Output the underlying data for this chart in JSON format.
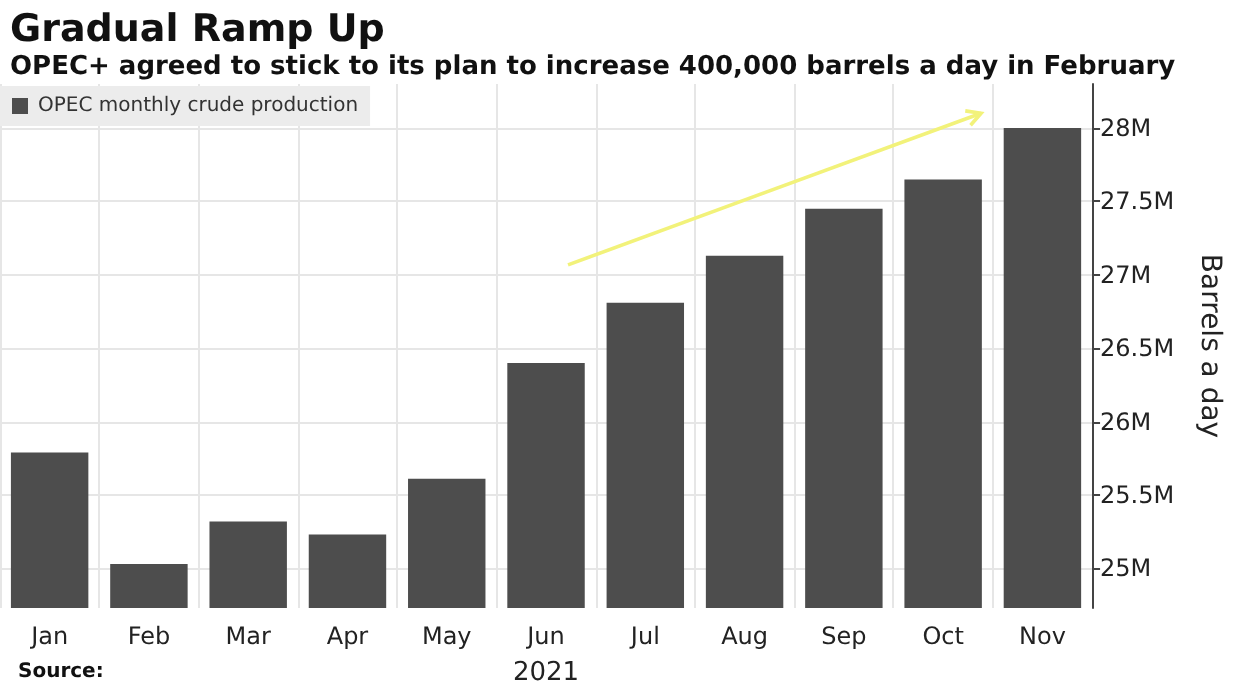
{
  "chart_data": {
    "type": "bar",
    "title": "Gradual Ramp Up",
    "subtitle": "OPEC+ agreed to stick to its plan to increase 400,000 barrels a day in February",
    "categories": [
      "Jan",
      "Feb",
      "Mar",
      "Apr",
      "May",
      "Jun",
      "Jul",
      "Aug",
      "Sep",
      "Oct",
      "Nov"
    ],
    "series": [
      {
        "name": "OPEC monthly crude production",
        "color": "#4d4d4d",
        "values": [
          25.79,
          25.03,
          25.32,
          25.23,
          25.61,
          26.4,
          26.81,
          27.13,
          27.45,
          27.65,
          28.0
        ]
      }
    ],
    "xlabel": "2021",
    "ylabel": "Barrels a day",
    "ylim": [
      24.73,
      28.3
    ],
    "yticks": [
      {
        "value": 25,
        "label": "25M"
      },
      {
        "value": 25.5,
        "label": "25.5M"
      },
      {
        "value": 26,
        "label": "26M"
      },
      {
        "value": 26.5,
        "label": "26.5M"
      },
      {
        "value": 27,
        "label": "27M"
      },
      {
        "value": 27.5,
        "label": "27.5M"
      },
      {
        "value": 28,
        "label": "28M"
      }
    ],
    "grid": true,
    "legend": "top left",
    "annotations": [
      "Source:"
    ]
  }
}
